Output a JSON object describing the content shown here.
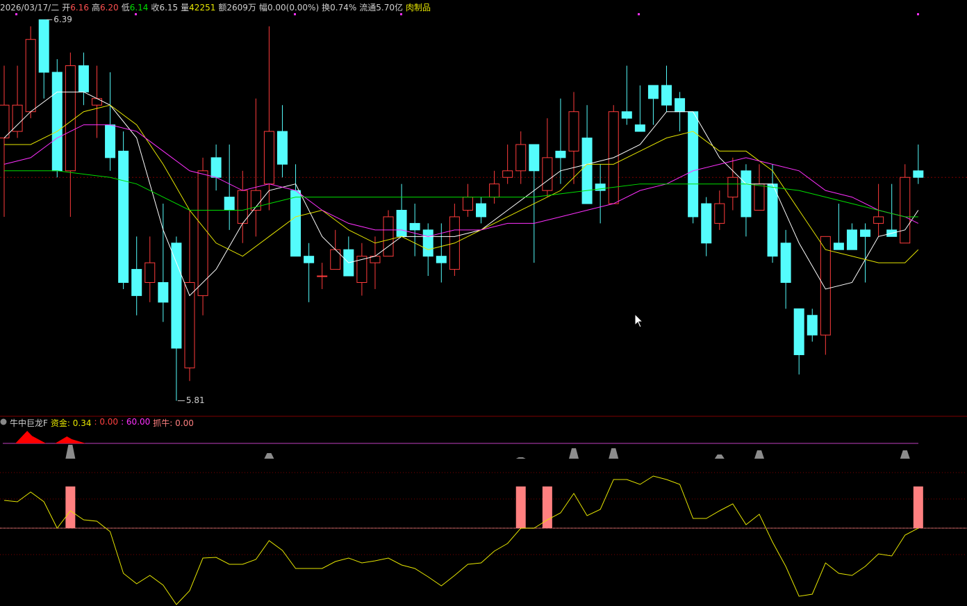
{
  "chart_data": [
    {
      "type": "candlestick",
      "date": "2026/03/17/二",
      "header": [
        {
          "label": "开",
          "value": "6.16",
          "color": "#ff5050"
        },
        {
          "label": "高",
          "value": "6.20",
          "color": "#ff5050"
        },
        {
          "label": "低",
          "value": "6.14",
          "color": "#00e000"
        },
        {
          "label": "收",
          "value": "6.15",
          "color": "#d0d0d0"
        },
        {
          "label": "量",
          "value": "42251",
          "color": "#e6e600"
        },
        {
          "label": "额",
          "value": "2609万",
          "color": "#d0d0d0"
        },
        {
          "label": "幅",
          "value": "0.00(0.00%)",
          "color": "#d0d0d0"
        },
        {
          "label": "换",
          "value": "0.74%",
          "color": "#d0d0d0"
        },
        {
          "label": "流通",
          "value": "5.70亿",
          "color": "#d0d0d0"
        }
      ],
      "sector": "肉制品",
      "ylim": [
        5.78,
        6.42
      ],
      "prev_close": 6.15,
      "up_color": "#ff3c3c",
      "down_color": "#54fcfc",
      "open": [
        6.21,
        6.22,
        6.25,
        6.39,
        6.31,
        6.16,
        6.32,
        6.26,
        6.23,
        6.19,
        6.01,
        5.99,
        5.99,
        6.05,
        5.86,
        5.97,
        6.18,
        6.12,
        6.08,
        6.1,
        6.14,
        6.22,
        6.13,
        6.03,
        6.0,
        6.01,
        6.04,
        5.99,
        6.02,
        6.03,
        6.1,
        6.08,
        6.07,
        6.03,
        6.01,
        6.1,
        6.11,
        6.12,
        6.15,
        6.16,
        6.2,
        6.13,
        6.19,
        6.19,
        6.21,
        6.14,
        6.11,
        6.25,
        6.23,
        6.29,
        6.29,
        6.27,
        6.25,
        6.11,
        6.08,
        6.12,
        6.16,
        6.1,
        6.14,
        6.05,
        5.95,
        5.94,
        5.91,
        6.05,
        6.07,
        6.07,
        6.08,
        6.07,
        6.05,
        6.16
      ],
      "high": [
        6.32,
        6.32,
        6.38,
        6.39,
        6.33,
        6.34,
        6.34,
        6.32,
        6.31,
        6.22,
        6.06,
        6.06,
        6.11,
        6.06,
        6.1,
        6.18,
        6.2,
        6.2,
        6.16,
        6.27,
        6.38,
        6.26,
        6.17,
        6.05,
        6.02,
        6.07,
        6.06,
        6.05,
        6.06,
        6.1,
        6.14,
        6.11,
        6.08,
        6.08,
        6.11,
        6.14,
        6.12,
        6.16,
        6.2,
        6.22,
        6.2,
        6.24,
        6.27,
        6.28,
        6.26,
        6.17,
        6.26,
        6.32,
        6.29,
        6.29,
        6.32,
        6.28,
        6.25,
        6.12,
        6.13,
        6.18,
        6.17,
        6.17,
        6.17,
        6.07,
        5.95,
        5.95,
        6.06,
        6.11,
        6.08,
        6.08,
        6.14,
        6.14,
        6.17,
        6.2
      ],
      "low": [
        6.09,
        6.21,
        6.24,
        6.27,
        6.15,
        6.09,
        6.26,
        6.21,
        6.16,
        5.98,
        5.94,
        5.96,
        5.93,
        5.81,
        5.84,
        5.94,
        6.13,
        6.07,
        6.05,
        6.06,
        6.1,
        6.15,
        6.03,
        5.96,
        5.98,
        6.01,
        6.0,
        5.97,
        5.98,
        6.03,
        6.06,
        6.03,
        6.0,
        5.99,
        6.0,
        6.09,
        6.08,
        6.11,
        6.14,
        6.14,
        6.02,
        6.12,
        6.14,
        6.14,
        6.11,
        6.08,
        6.11,
        6.23,
        6.22,
        6.23,
        6.25,
        6.22,
        6.08,
        6.03,
        6.07,
        6.1,
        6.06,
        6.1,
        6.02,
        5.95,
        5.85,
        5.9,
        5.88,
        6.04,
        6.04,
        5.99,
        6.06,
        6.06,
        6.05,
        6.14
      ],
      "close": [
        6.26,
        6.26,
        6.36,
        6.31,
        6.16,
        6.32,
        6.28,
        6.27,
        6.18,
        5.99,
        5.97,
        6.02,
        5.96,
        5.89,
        5.99,
        6.16,
        6.15,
        6.1,
        6.13,
        6.13,
        6.22,
        6.17,
        6.03,
        6.02,
        6.0,
        6.04,
        6.0,
        6.03,
        6.03,
        6.09,
        6.06,
        6.07,
        6.03,
        6.02,
        6.09,
        6.12,
        6.09,
        6.14,
        6.16,
        6.2,
        6.16,
        6.18,
        6.18,
        6.25,
        6.11,
        6.13,
        6.25,
        6.24,
        6.22,
        6.27,
        6.26,
        6.25,
        6.09,
        6.05,
        6.11,
        6.15,
        6.09,
        6.14,
        6.03,
        5.99,
        5.88,
        5.91,
        6.06,
        6.04,
        6.04,
        6.06,
        6.09,
        6.06,
        6.15,
        6.15
      ],
      "ma": [
        {
          "color": "#ffffff",
          "x": [
            0,
            2,
            4,
            6,
            8,
            10,
            12,
            14,
            16,
            18,
            20,
            22,
            24,
            26,
            28,
            30,
            32,
            34,
            36,
            38,
            40,
            42,
            44,
            46,
            48,
            50,
            52,
            54,
            56,
            58,
            60,
            62,
            64,
            66,
            68,
            69
          ],
          "values": [
            6.21,
            6.25,
            6.28,
            6.28,
            6.26,
            6.21,
            6.07,
            5.97,
            6.01,
            6.08,
            6.13,
            6.14,
            6.06,
            6.02,
            6.03,
            6.06,
            6.06,
            6.06,
            6.07,
            6.1,
            6.13,
            6.16,
            6.17,
            6.18,
            6.2,
            6.25,
            6.25,
            6.18,
            6.14,
            6.14,
            6.05,
            5.98,
            5.99,
            6.06,
            6.07,
            6.1
          ]
        },
        {
          "color": "#e6e600",
          "x": [
            0,
            2,
            4,
            6,
            8,
            10,
            12,
            14,
            16,
            18,
            20,
            22,
            24,
            26,
            28,
            30,
            32,
            34,
            36,
            38,
            40,
            42,
            44,
            46,
            48,
            50,
            52,
            54,
            56,
            58,
            60,
            62,
            64,
            66,
            68,
            69
          ],
          "values": [
            6.2,
            6.2,
            6.22,
            6.25,
            6.26,
            6.23,
            6.17,
            6.1,
            6.05,
            6.03,
            6.06,
            6.09,
            6.1,
            6.07,
            6.05,
            6.06,
            6.04,
            6.05,
            6.07,
            6.09,
            6.11,
            6.13,
            6.17,
            6.17,
            6.19,
            6.21,
            6.22,
            6.19,
            6.19,
            6.16,
            6.1,
            6.04,
            6.03,
            6.02,
            6.02,
            6.04
          ]
        },
        {
          "color": "#ff30ff",
          "x": [
            0,
            2,
            4,
            6,
            8,
            10,
            12,
            14,
            16,
            18,
            20,
            22,
            24,
            26,
            28,
            30,
            32,
            34,
            36,
            38,
            40,
            42,
            44,
            46,
            48,
            50,
            52,
            54,
            56,
            58,
            60,
            62,
            64,
            66,
            68,
            69
          ],
          "values": [
            6.17,
            6.18,
            6.21,
            6.23,
            6.23,
            6.22,
            6.19,
            6.16,
            6.15,
            6.13,
            6.14,
            6.13,
            6.1,
            6.08,
            6.07,
            6.07,
            6.06,
            6.07,
            6.07,
            6.08,
            6.08,
            6.09,
            6.1,
            6.11,
            6.13,
            6.14,
            6.16,
            6.17,
            6.18,
            6.17,
            6.16,
            6.13,
            6.12,
            6.1,
            6.09,
            6.08
          ]
        },
        {
          "color": "#00e000",
          "x": [
            0,
            4,
            8,
            10,
            12,
            14,
            16,
            18,
            20,
            22,
            24,
            28,
            32,
            36,
            40,
            44,
            48,
            52,
            56,
            60,
            64,
            68,
            69
          ],
          "values": [
            6.16,
            6.16,
            6.15,
            6.14,
            6.12,
            6.1,
            6.1,
            6.1,
            6.11,
            6.12,
            6.12,
            6.12,
            6.12,
            6.12,
            6.12,
            6.13,
            6.14,
            6.14,
            6.14,
            6.13,
            6.11,
            6.09,
            6.09
          ]
        }
      ]
    },
    {
      "type": "line",
      "title": "牛中巨龙F",
      "legend": [
        {
          "text": "资金: 0.34",
          "color": "#e6e600"
        },
        {
          "text": ": 0.00",
          "color": "#ff4040"
        },
        {
          "text": ": 60.00",
          "color": "#ff30ff"
        },
        {
          "text": "抓牛: 0.00",
          "color": "#ff8080"
        }
      ],
      "ylim": [
        0,
        100
      ],
      "ref_lines": [
        95,
        76,
        55,
        36
      ],
      "ref_colors": [
        "#800000",
        "#800000",
        "#ff8080",
        "#800000"
      ],
      "series": [
        {
          "color": "#e6e600",
          "values": [
            75,
            74,
            81,
            74,
            55,
            67.5,
            61,
            60,
            52.5,
            22.5,
            15,
            21,
            14,
            0,
            10,
            33.5,
            34,
            29,
            29,
            32.5,
            46,
            39,
            26,
            26,
            26,
            31,
            33.5,
            30,
            31.5,
            33.5,
            28.5,
            26,
            20,
            13.5,
            21,
            29,
            30,
            38.5,
            44,
            55,
            55,
            61,
            66,
            80,
            64,
            68.5,
            90,
            90,
            86.5,
            92.5,
            90,
            86.5,
            62,
            62,
            67.5,
            72.5,
            57.5,
            65,
            45,
            27.5,
            6,
            7.5,
            30,
            22.5,
            21,
            27.5,
            36.5,
            35,
            50,
            55
          ]
        }
      ],
      "bars": {
        "color": "#ff8080",
        "base": 55,
        "x": [
          5,
          39,
          41,
          69
        ],
        "values": [
          85,
          85,
          85,
          85
        ]
      },
      "red_signals": {
        "color": "#ff0000",
        "x": [
          2,
          5
        ],
        "values": [
          18,
          10
        ]
      },
      "grey_signals": {
        "color": "#8c8c8c",
        "x": [
          5,
          20,
          39,
          43,
          46,
          54,
          57,
          68
        ],
        "values": [
          20,
          8,
          2,
          15,
          15,
          6,
          12,
          12
        ]
      }
    }
  ]
}
